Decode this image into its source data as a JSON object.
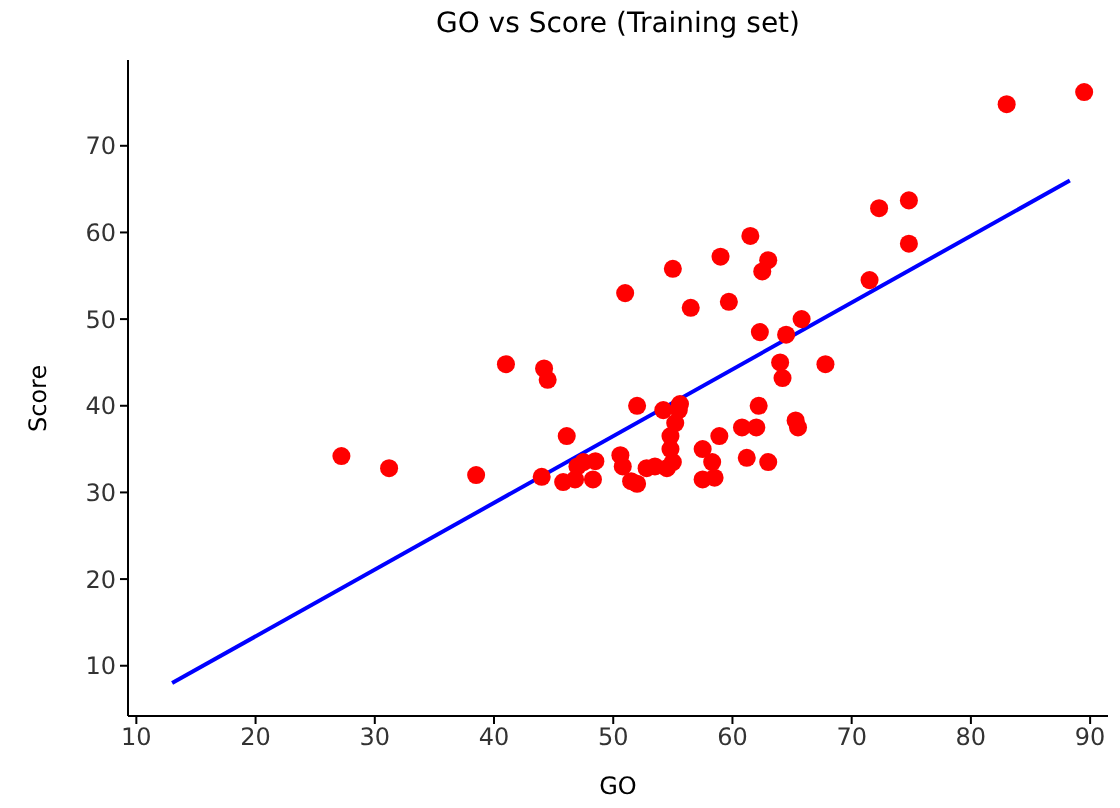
{
  "chart_data": {
    "type": "scatter",
    "title": "GO vs Score (Training set)",
    "xlabel": "GO",
    "ylabel": "Score",
    "xlim": [
      9.3,
      91.5
    ],
    "xticks": [
      10,
      20,
      30,
      40,
      50,
      60,
      70,
      80,
      90
    ],
    "ylim": [
      4.2,
      79.9
    ],
    "yticks": [
      10,
      20,
      30,
      40,
      50,
      60,
      70
    ],
    "grid": false,
    "series": [
      {
        "color": "#ff0000",
        "marker": "circle",
        "x": [
          27.2,
          31.2,
          38.5,
          41,
          44.2,
          44.5,
          44,
          46.1,
          45.8,
          46.8,
          47,
          47.5,
          48.3,
          48.5,
          50.6,
          50.8,
          51,
          51.5,
          52,
          52,
          52.8,
          53.5,
          54.2,
          54.5,
          54.8,
          54.8,
          55,
          55,
          55.2,
          55.5,
          55.6,
          56.5,
          57.5,
          57.5,
          58.3,
          58.5,
          58.9,
          59,
          59.7,
          60.8,
          61.2,
          61.5,
          62,
          62.2,
          62.3,
          62.5,
          63,
          63,
          64,
          64.2,
          64.5,
          65.3,
          65.5,
          65.8,
          67.8,
          71.5,
          72.3,
          74.8,
          74.8,
          83,
          89.5
        ],
        "values": [
          34.2,
          32.8,
          32,
          44.8,
          44.3,
          43,
          31.8,
          36.5,
          31.2,
          31.5,
          33,
          33.5,
          31.5,
          33.6,
          34.3,
          33,
          53,
          31.3,
          31,
          40,
          32.8,
          33,
          39.5,
          32.8,
          35,
          36.5,
          33.5,
          55.8,
          38,
          39.5,
          40.2,
          51.3,
          31.5,
          35,
          33.5,
          31.7,
          36.5,
          57.2,
          52,
          37.5,
          34,
          59.6,
          37.5,
          40,
          48.5,
          55.5,
          33.5,
          56.8,
          45,
          43.2,
          48.2,
          38.3,
          37.5,
          50,
          44.8,
          54.5,
          62.8,
          58.7,
          63.7,
          74.8,
          76.2
        ]
      },
      {
        "type": "line",
        "color": "#0000ff",
        "marker": "none",
        "line_style": "solid",
        "x": [
          13,
          88.3
        ],
        "values": [
          8,
          66
        ]
      }
    ]
  }
}
